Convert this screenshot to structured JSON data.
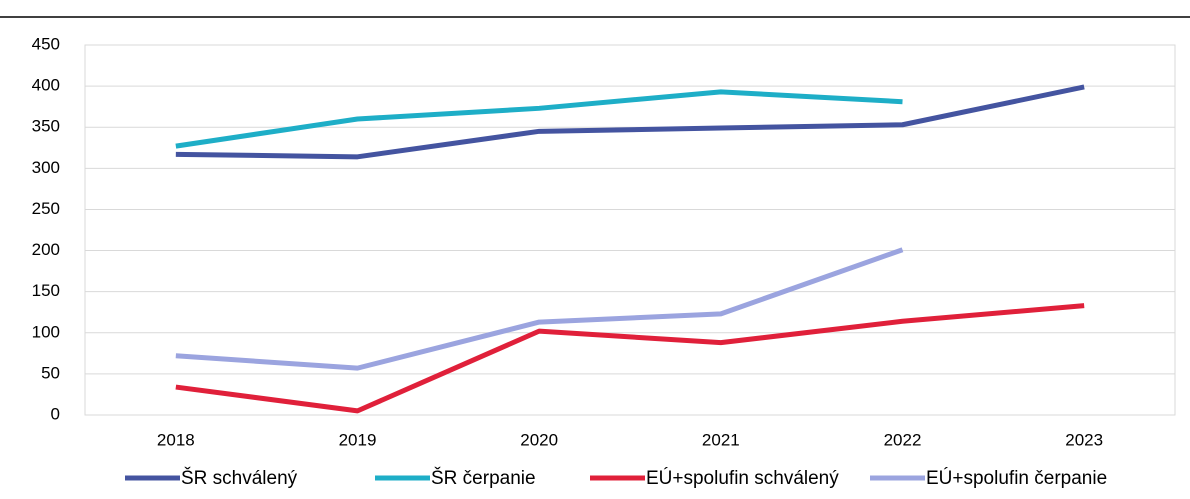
{
  "chart_data": {
    "type": "line",
    "categories": [
      "2018",
      "2019",
      "2020",
      "2021",
      "2022",
      "2023"
    ],
    "series": [
      {
        "name": "ŠR schválený",
        "color": "#4454a0",
        "values": [
          317,
          314,
          345,
          349,
          353,
          399
        ]
      },
      {
        "name": "ŠR čerpanie",
        "color": "#1eaec7",
        "values": [
          327,
          360,
          373,
          393,
          381,
          null
        ]
      },
      {
        "name": "EÚ+spolufin schválený",
        "color": "#e0203a",
        "values": [
          34,
          5,
          102,
          88,
          114,
          133
        ]
      },
      {
        "name": "EÚ+spolufin čerpanie",
        "color": "#9ba4df",
        "values": [
          72,
          57,
          113,
          123,
          201,
          null
        ]
      }
    ],
    "ylim": [
      0,
      450
    ],
    "yticks": [
      0,
      50,
      100,
      150,
      200,
      250,
      300,
      350,
      400,
      450
    ],
    "grid": true,
    "legend": "bottom"
  }
}
